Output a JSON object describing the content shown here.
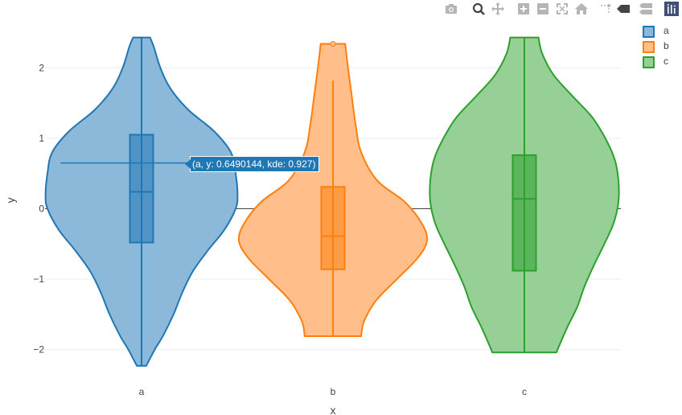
{
  "toolbar": {
    "buttons": [
      {
        "name": "camera-icon",
        "tooltip": ""
      },
      {
        "name": "zoom-icon",
        "tooltip": ""
      },
      {
        "name": "pan-icon",
        "tooltip": ""
      },
      {
        "name": "zoom-in-icon",
        "tooltip": ""
      },
      {
        "name": "zoom-out-icon",
        "tooltip": ""
      },
      {
        "name": "autoscale-icon",
        "tooltip": ""
      },
      {
        "name": "home-icon",
        "tooltip": ""
      },
      {
        "name": "spike-lines-icon",
        "tooltip": ""
      },
      {
        "name": "hover-closest-icon",
        "tooltip": ""
      },
      {
        "name": "hover-compare-icon",
        "tooltip": ""
      },
      {
        "name": "plotly-logo-icon",
        "tooltip": ""
      }
    ],
    "icon_color": "#b5b5b5",
    "active_icon_color": "#444444"
  },
  "hover": {
    "text": "(a, y: 0.6490144, kde: 0.927)",
    "trace": "a",
    "y": 0.6490144
  },
  "chart_data": {
    "type": "violin",
    "title": "",
    "xlabel": "x",
    "ylabel": "y",
    "categories": [
      "a",
      "b",
      "c"
    ],
    "ylim": [
      -2.4,
      2.5
    ],
    "yticks": [
      -2,
      -1,
      0,
      1,
      2
    ],
    "ytick_labels": [
      "−2",
      "−1",
      "0",
      "1",
      "2"
    ],
    "zero_line": true,
    "grid": true,
    "legend_position": "top-right",
    "series": [
      {
        "name": "a",
        "color": "#1f77b4",
        "fill": "#8cb8d9",
        "min": -2.23,
        "q1": -0.48,
        "median": 0.24,
        "q3": 1.05,
        "max": 2.43,
        "whisker_low": -2.23,
        "whisker_high": 2.43,
        "outliers": [],
        "density": [
          [
            2.43,
            0.09
          ],
          [
            2.3,
            0.13
          ],
          [
            2.0,
            0.2
          ],
          [
            1.7,
            0.31
          ],
          [
            1.4,
            0.5
          ],
          [
            1.1,
            0.77
          ],
          [
            0.8,
            0.95
          ],
          [
            0.5,
            1.0
          ],
          [
            0.2,
            1.02
          ],
          [
            0.0,
            1.0
          ],
          [
            -0.3,
            0.88
          ],
          [
            -0.6,
            0.7
          ],
          [
            -0.9,
            0.54
          ],
          [
            -1.2,
            0.43
          ],
          [
            -1.5,
            0.34
          ],
          [
            -1.8,
            0.23
          ],
          [
            -2.0,
            0.14
          ],
          [
            -2.23,
            0.05
          ]
        ]
      },
      {
        "name": "b",
        "color": "#ff7f0e",
        "fill": "#ffbe8a",
        "min": -1.81,
        "q1": -0.86,
        "median": -0.39,
        "q3": 0.31,
        "max": 1.82,
        "whisker_low": -1.81,
        "whisker_high": 1.82,
        "outliers": [
          2.34
        ],
        "density": [
          [
            2.34,
            0.13
          ],
          [
            2.0,
            0.16
          ],
          [
            1.6,
            0.2
          ],
          [
            1.2,
            0.24
          ],
          [
            0.8,
            0.3
          ],
          [
            0.4,
            0.47
          ],
          [
            0.1,
            0.76
          ],
          [
            -0.2,
            0.94
          ],
          [
            -0.45,
            1.0
          ],
          [
            -0.7,
            0.9
          ],
          [
            -1.0,
            0.68
          ],
          [
            -1.3,
            0.46
          ],
          [
            -1.6,
            0.33
          ],
          [
            -1.81,
            0.3
          ]
        ]
      },
      {
        "name": "c",
        "color": "#2ca02c",
        "fill": "#96d096",
        "min": -2.04,
        "q1": -0.88,
        "median": 0.14,
        "q3": 0.76,
        "max": 2.43,
        "whisker_low": -2.04,
        "whisker_high": 2.43,
        "outliers": [],
        "density": [
          [
            2.43,
            0.15
          ],
          [
            2.2,
            0.19
          ],
          [
            1.9,
            0.31
          ],
          [
            1.6,
            0.51
          ],
          [
            1.3,
            0.72
          ],
          [
            1.0,
            0.86
          ],
          [
            0.7,
            0.96
          ],
          [
            0.4,
            1.0
          ],
          [
            0.1,
            1.0
          ],
          [
            -0.2,
            0.95
          ],
          [
            -0.5,
            0.85
          ],
          [
            -0.8,
            0.74
          ],
          [
            -1.1,
            0.64
          ],
          [
            -1.4,
            0.56
          ],
          [
            -1.7,
            0.45
          ],
          [
            -2.04,
            0.34
          ]
        ]
      }
    ]
  }
}
